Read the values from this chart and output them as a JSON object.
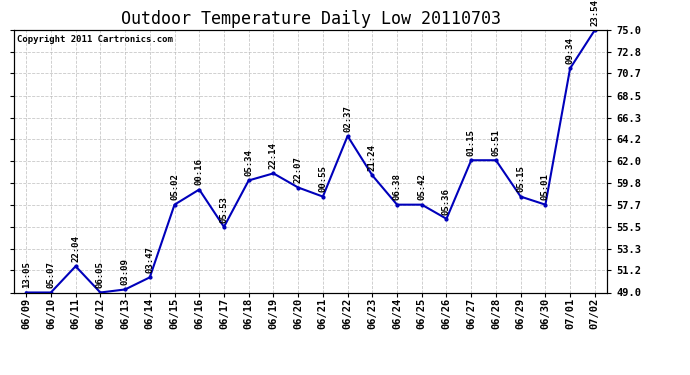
{
  "title": "Outdoor Temperature Daily Low 20110703",
  "copyright": "Copyright 2011 Cartronics.com",
  "x_labels": [
    "06/09",
    "06/10",
    "06/11",
    "06/12",
    "06/13",
    "06/14",
    "06/15",
    "06/16",
    "06/17",
    "06/18",
    "06/19",
    "06/20",
    "06/21",
    "06/22",
    "06/23",
    "06/24",
    "06/25",
    "06/26",
    "06/27",
    "06/28",
    "06/29",
    "06/30",
    "07/01",
    "07/02"
  ],
  "y_values": [
    49.0,
    49.0,
    51.6,
    49.0,
    49.3,
    50.5,
    57.7,
    59.2,
    55.5,
    60.1,
    60.8,
    59.4,
    58.5,
    64.5,
    60.6,
    57.7,
    57.7,
    56.3,
    62.1,
    62.1,
    58.5,
    57.7,
    71.2,
    75.0
  ],
  "time_labels": [
    "13:05",
    "05:07",
    "22:04",
    "06:05",
    "03:09",
    "03:47",
    "05:02",
    "00:16",
    "05:53",
    "05:34",
    "22:14",
    "22:07",
    "00:55",
    "02:37",
    "21:24",
    "06:38",
    "05:42",
    "05:36",
    "01:15",
    "05:51",
    "05:15",
    "05:01",
    "09:34",
    "23:54"
  ],
  "y_min": 49.0,
  "y_max": 75.0,
  "y_ticks": [
    49.0,
    51.2,
    53.3,
    55.5,
    57.7,
    59.8,
    62.0,
    64.2,
    66.3,
    68.5,
    70.7,
    72.8,
    75.0
  ],
  "line_color": "#0000bb",
  "marker_color": "#0000bb",
  "background_color": "#ffffff",
  "grid_color": "#bbbbbb",
  "title_fontsize": 12,
  "label_fontsize": 6.5,
  "tick_fontsize": 7.5
}
